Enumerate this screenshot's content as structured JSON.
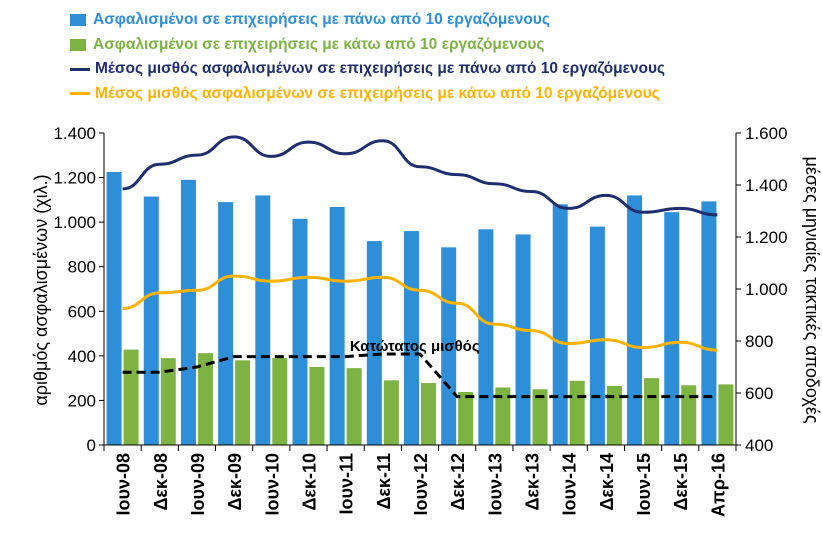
{
  "chart_data": {
    "type": "bar",
    "categories": [
      "Ιουν-08",
      "Δεκ-08",
      "Ιουν-09",
      "Δεκ-09",
      "Ιουν-10",
      "Δεκ-10",
      "Ιουν-11",
      "Δεκ-11",
      "Ιουν-12",
      "Δεκ-12",
      "Ιουν-13",
      "Δεκ-13",
      "Ιουν-14",
      "Δεκ-14",
      "Ιουν-15",
      "Δεκ-15",
      "Απρ-16"
    ],
    "series": [
      {
        "name": "Ασφαλισμένοι σε επιχειρήσεις με πάνω από 10 εργαζόμενους",
        "type": "bar",
        "axis": "left",
        "color": "#2E8FD8",
        "values": [
          1225,
          1115,
          1190,
          1090,
          1120,
          1015,
          1068,
          915,
          960,
          887,
          968,
          945,
          1080,
          980,
          1120,
          1045,
          1093
        ]
      },
      {
        "name": "Ασφαλισμένοι σε επιχειρήσεις με κάτω από 10 εργαζόμενους",
        "type": "bar",
        "axis": "left",
        "color": "#7CB342",
        "values": [
          428,
          390,
          412,
          380,
          390,
          350,
          345,
          290,
          278,
          238,
          258,
          250,
          288,
          265,
          300,
          268,
          272
        ]
      },
      {
        "name": "Μέσος μισθός ασφαλισμένων σε επιχειρήσεις με πάνω από 10 εργαζόμενους",
        "type": "line",
        "axis": "right",
        "color": "#1F2E6E",
        "values": [
          1385,
          1480,
          1515,
          1585,
          1510,
          1565,
          1520,
          1570,
          1470,
          1440,
          1405,
          1375,
          1310,
          1360,
          1295,
          1310,
          1285
        ]
      },
      {
        "name": "Μέσος μισθός ασφαλισμένων σε επιχειρήσεις με κάτω από 10 εργαζόμενους",
        "type": "line",
        "axis": "right",
        "color": "#FFB300",
        "values": [
          925,
          985,
          995,
          1050,
          1030,
          1045,
          1030,
          1045,
          995,
          945,
          865,
          840,
          790,
          805,
          775,
          795,
          765
        ]
      },
      {
        "name": "Κατώτατος μισθός",
        "type": "step-dashed",
        "axis": "right",
        "color": "#000000",
        "values": [
          680,
          680,
          700,
          740,
          740,
          740,
          740,
          750,
          750,
          586,
          586,
          586,
          586,
          586,
          586,
          586,
          586
        ]
      }
    ],
    "annotations": [
      {
        "text": "Κατώτατος μισθός",
        "category": "Δεκ-11",
        "value": 780,
        "axis": "right"
      }
    ],
    "xlabel": "",
    "ylabel": "αριθμός ασφαλισμένων (χιλ.)",
    "y2label": "μέσες μηνιαίες τακτικές αποδοχές",
    "ylim": [
      0,
      1400
    ],
    "yticks": [
      0,
      200,
      400,
      600,
      800,
      1000,
      1200,
      1400
    ],
    "ytick_labels": [
      "0",
      "200",
      "400",
      "600",
      "800",
      "1.000",
      "1.200",
      "1.400"
    ],
    "y2lim": [
      400,
      1600
    ],
    "y2ticks": [
      400,
      600,
      800,
      1000,
      1200,
      1400,
      1600
    ],
    "y2tick_labels": [
      "400",
      "600",
      "800",
      "1.000",
      "1.200",
      "1.400",
      "1.600"
    ],
    "grid": false,
    "legend": "top"
  }
}
